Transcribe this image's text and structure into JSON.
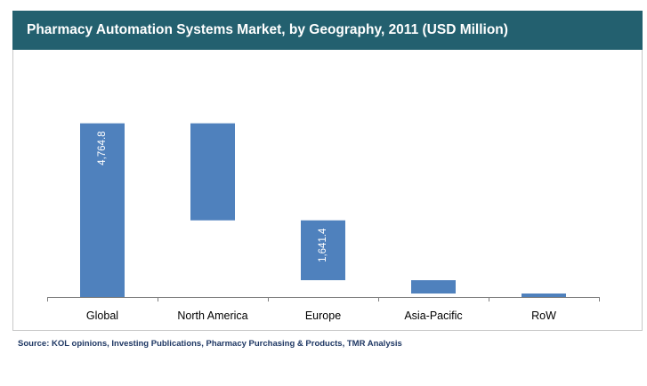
{
  "title": "Pharmacy Automation Systems Market, by Geography, 2011 (USD Million)",
  "source": "Source: KOL opinions, Investing Publications, Pharmacy Purchasing & Products, TMR Analysis",
  "colors": {
    "bar": "#4f81bd",
    "header": "#23606f",
    "axis": "#808080",
    "source_text": "#1f3864"
  },
  "chart_data": {
    "type": "bar",
    "subtype": "waterfall",
    "title": "Pharmacy Automation Systems Market, by Geography, 2011 (USD Million)",
    "categories": [
      "Global",
      "North America",
      "Europe",
      "Asia-Pacific",
      "RoW"
    ],
    "values": [
      4764.8,
      2661.0,
      1641.4,
      365.0,
      97.4
    ],
    "base": [
      0,
      2103.8,
      462.4,
      97.4,
      0
    ],
    "data_labels": [
      "4,764.8",
      "",
      "1,641.4",
      "",
      ""
    ],
    "ylim": [
      0,
      6000
    ],
    "xlabel": "",
    "ylabel": "",
    "grid": false,
    "legend": "none"
  }
}
